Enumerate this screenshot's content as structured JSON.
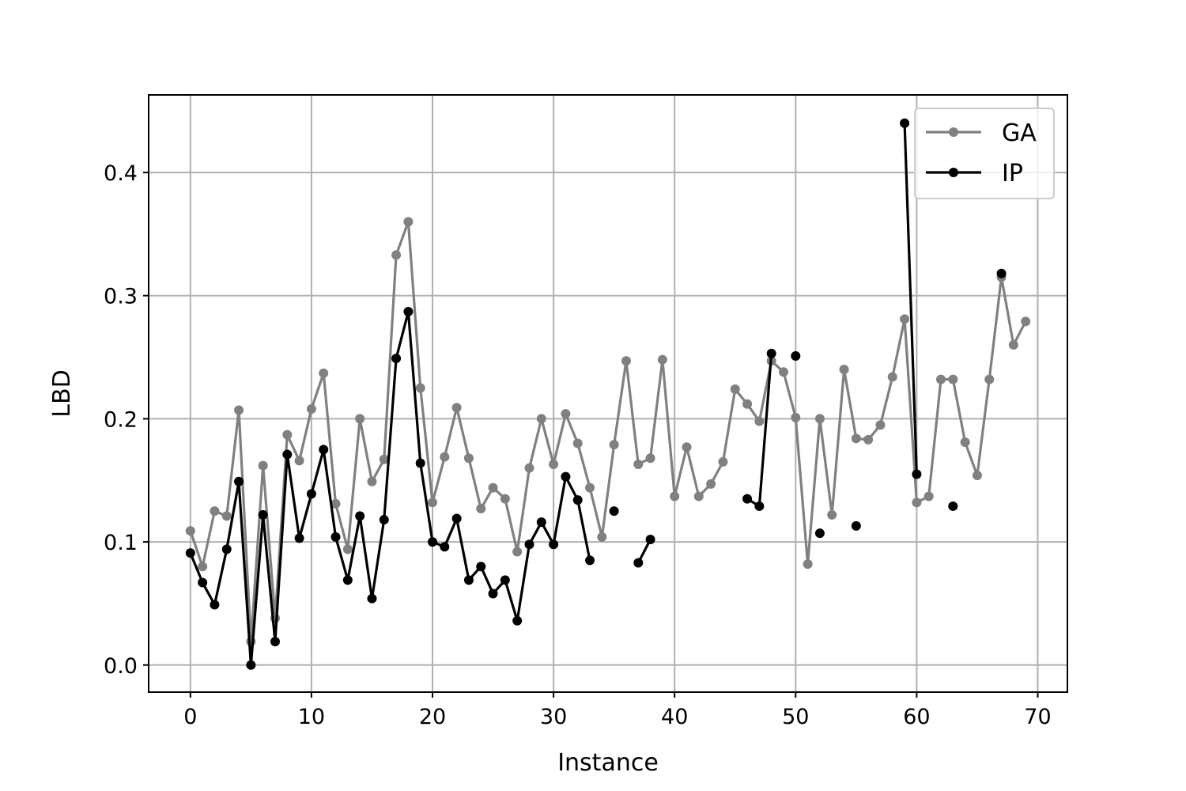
{
  "chart_data": {
    "type": "line",
    "title": "",
    "xlabel": "Instance",
    "ylabel": "LBD",
    "xlim": [
      -3.45,
      72.45
    ],
    "ylim": [
      -0.022,
      0.463
    ],
    "xticks": [
      0,
      10,
      20,
      30,
      40,
      50,
      60,
      70
    ],
    "xtick_labels": [
      "0",
      "10",
      "20",
      "30",
      "40",
      "50",
      "60",
      "70"
    ],
    "yticks": [
      0.0,
      0.1,
      0.2,
      0.3,
      0.4
    ],
    "ytick_labels": [
      "0.0",
      "0.1",
      "0.2",
      "0.3",
      "0.4"
    ],
    "grid": true,
    "legend_position": "top-right",
    "series": [
      {
        "name": "GA",
        "color": "#808080",
        "x": [
          0,
          1,
          2,
          3,
          4,
          5,
          6,
          7,
          8,
          9,
          10,
          11,
          12,
          13,
          14,
          15,
          16,
          17,
          18,
          19,
          20,
          21,
          22,
          23,
          24,
          25,
          26,
          27,
          28,
          29,
          30,
          31,
          32,
          33,
          34,
          35,
          36,
          37,
          38,
          39,
          40,
          41,
          42,
          43,
          44,
          45,
          46,
          47,
          48,
          49,
          50,
          51,
          52,
          53,
          54,
          55,
          56,
          57,
          58,
          59,
          60,
          61,
          62,
          63,
          64,
          65,
          66,
          67,
          68,
          69
        ],
        "y": [
          0.109,
          0.08,
          0.125,
          0.121,
          0.207,
          0.019,
          0.162,
          0.038,
          0.187,
          0.166,
          0.208,
          0.237,
          0.131,
          0.094,
          0.2,
          0.149,
          0.167,
          0.333,
          0.36,
          0.225,
          0.132,
          0.169,
          0.209,
          0.168,
          0.127,
          0.144,
          0.135,
          0.092,
          0.16,
          0.2,
          0.163,
          0.204,
          0.18,
          0.144,
          0.104,
          0.179,
          0.247,
          0.163,
          0.168,
          0.248,
          0.137,
          0.177,
          0.137,
          0.147,
          0.165,
          0.224,
          0.212,
          0.198,
          0.247,
          0.238,
          0.201,
          0.082,
          0.2,
          0.122,
          0.24,
          0.184,
          0.183,
          0.195,
          0.234,
          0.281,
          0.132,
          0.137,
          0.232,
          0.232,
          0.181,
          0.154,
          0.232,
          0.315,
          0.26,
          0.279
        ]
      },
      {
        "name": "IP",
        "color": "#000000",
        "x": [
          0,
          1,
          2,
          3,
          4,
          5,
          6,
          7,
          8,
          9,
          10,
          11,
          12,
          13,
          14,
          15,
          16,
          17,
          18,
          19,
          20,
          21,
          22,
          23,
          24,
          25,
          26,
          27,
          28,
          29,
          30,
          31,
          32,
          33,
          34,
          35,
          36,
          37,
          38,
          39,
          40,
          41,
          42,
          43,
          44,
          45,
          46,
          47,
          48,
          49,
          50,
          51,
          52,
          53,
          54,
          55,
          56,
          57,
          58,
          59,
          60,
          61,
          62,
          63,
          64,
          65,
          66,
          67,
          68,
          69
        ],
        "y": [
          0.091,
          0.067,
          0.049,
          0.094,
          0.149,
          0.0,
          0.122,
          0.019,
          0.171,
          0.103,
          0.139,
          0.175,
          0.104,
          0.069,
          0.121,
          0.054,
          0.118,
          0.249,
          0.287,
          0.164,
          0.1,
          0.096,
          0.119,
          0.069,
          0.08,
          0.058,
          0.069,
          0.036,
          0.098,
          0.116,
          0.098,
          0.153,
          0.134,
          0.085,
          null,
          0.125,
          null,
          0.083,
          0.102,
          null,
          null,
          null,
          null,
          null,
          null,
          null,
          0.135,
          0.129,
          0.253,
          null,
          0.251,
          null,
          0.107,
          null,
          null,
          0.113,
          null,
          null,
          null,
          0.44,
          0.155,
          null,
          null,
          0.129,
          null,
          null,
          null,
          0.318,
          null,
          null
        ]
      }
    ]
  }
}
